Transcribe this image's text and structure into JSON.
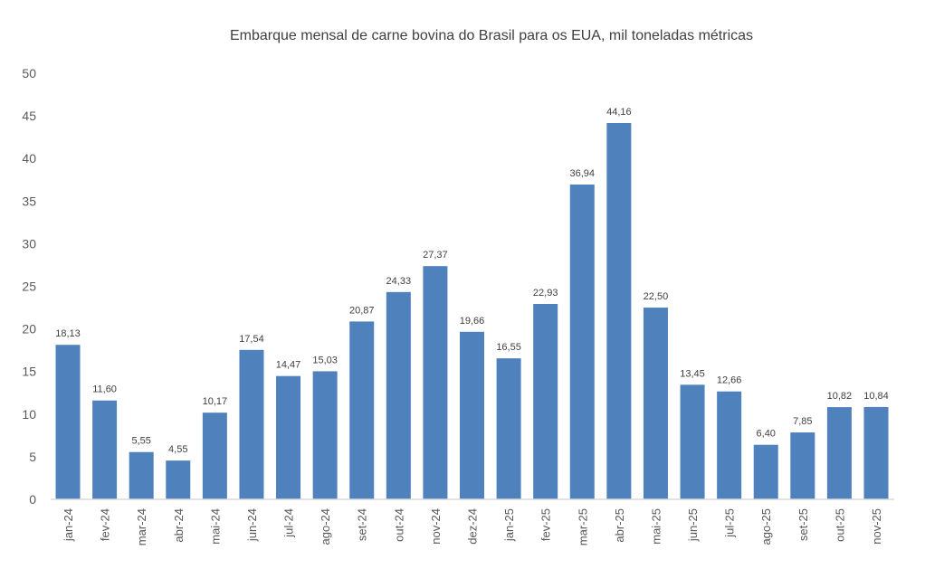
{
  "chart_data": {
    "type": "bar",
    "title": "Embarque mensal de carne bovina do Brasil para os EUA,  mil toneladas métricas",
    "xlabel": "",
    "ylabel": "",
    "ylim": [
      0,
      50
    ],
    "yticks": [
      0,
      5,
      10,
      15,
      20,
      25,
      30,
      35,
      40,
      45,
      50
    ],
    "grid": false,
    "legend": "none",
    "bar_color": "#4F81BD",
    "categories": [
      "jan-24",
      "fev-24",
      "mar-24",
      "abr-24",
      "mai-24",
      "jun-24",
      "jul-24",
      "ago-24",
      "set-24",
      "out-24",
      "nov-24",
      "dez-24",
      "jan-25",
      "fev-25",
      "mar-25",
      "abr-25",
      "mai-25",
      "jun-25",
      "jul-25",
      "ago-25",
      "set-25",
      "out-25",
      "nov-25"
    ],
    "values": [
      18.13,
      11.6,
      5.55,
      4.55,
      10.17,
      17.54,
      14.47,
      15.03,
      20.87,
      24.33,
      27.37,
      19.66,
      16.55,
      22.93,
      36.94,
      44.16,
      22.5,
      13.45,
      12.66,
      6.4,
      7.85,
      10.82,
      10.84
    ],
    "data_labels": [
      "18,13",
      "11,60",
      "5,55",
      "4,55",
      "10,17",
      "17,54",
      "14,47",
      "15,03",
      "20,87",
      "24,33",
      "27,37",
      "19,66",
      "16,55",
      "22,93",
      "36,94",
      "44,16",
      "22,50",
      "13,45",
      "12,66",
      "6,40",
      "7,85",
      "10,82",
      "10,84"
    ]
  }
}
